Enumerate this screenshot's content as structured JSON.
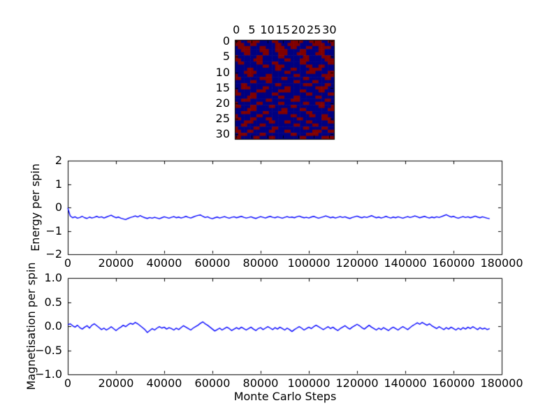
{
  "figure": {
    "background": "#ffffff",
    "frame_color": "#000000",
    "line_color": "#0000ff"
  },
  "chart_data": [
    {
      "id": "spin-lattice",
      "type": "heatmap",
      "grid_size": 32,
      "tick_values": [
        0,
        5,
        10,
        15,
        20,
        25,
        30
      ],
      "xtick_labels": [
        "0",
        "5",
        "10",
        "15",
        "20",
        "25",
        "30"
      ],
      "ytick_labels": [
        "0",
        "5",
        "10",
        "15",
        "20",
        "25",
        "30"
      ],
      "palette": {
        "R": "#800000",
        "B": "#000080"
      },
      "rows": [
        "RRBBRRRRBBBBRRBBBBRRRRBBRRRRBBRR",
        "RRRBBRRBBBBBBRRBBRRRRBBBBRRRRBBR",
        "BRRRRBBBRRBBBRRRBBRRBBBRRBBRRRRB",
        "BBRRRBBBRRRBBRRRRBBBBRRBBBBRRBBB",
        "BBBRRBBBBRRBBBRRRBBBRRRBBBRRRBBB",
        "RBBBBBBRRBBBBBRRBBBBBBRRBBBBRRRB",
        "RRBBBBRRRBBBBBBBRRBBBRRRBBBBBRRR",
        "BRRBBBBRRBBBRRBBBBBBBRRBBBBBBBRR",
        "BBBBBBBBBRRBBRRRBBBBBBBRRBBRRBBB",
        "BBBBRRBBBBBBBRRBBBRRBBBBRRRRBBBB",
        "BBBRRRRBBBBBBBBBRRBBBBBRRRBBBBRR",
        "RBBBRRBBBBRRBBBBBBBRRBBBBBBBRRRR",
        "RRBBBBBBRRRRBBBRRBBBBBRRBBBBBRRB",
        "BBBBBRRBBBRRBBBBBBBRRBBBBRRBBBBB",
        "BBRRBBBBBBBBBRRBBBBBBBRRRBBBBRRB",
        "BBRRRBBBBRRBBBBBRRBBBBBBBBRRRRBB",
        "RBBBBBBRRRBBBBRRRRBBBRRBBBBRRBBB",
        "RRBBBRRBBBBBRRBBBBBBBBBRRBBBBBRR",
        "BBBBRRRBBBBBBBRRBBBRRBBBBBRRBBBB",
        "BBRRRBBBBBRRBBBBBBRRRBBBBBBBBRRB",
        "RBBBBBBRRBBBBBRRBBBBBBRRBBRRRBBB",
        "RRBBBRRBBBBRRBBBBBRRBBBBBBBRRBBR",
        "BBBBRRRBBBBBBBBRRBBBBRRBBBBBBBRR",
        "BBRRRBBBBRRBBBRRRBBBBBBRRBBBBBBB",
        "RBBBBBBRRBBBBBBBBBRRBBBBRRBBRRBB",
        "RRBBBRRBBBRRBBBBBBBBRRBBBBBBRRRB",
        "BBBRRRBBBBBRRBBBRRBBBBBRRBBBBBRR",
        "BBRRBBBBRRBBBBBBBBBRRBBBBRRBBBBB",
        "RBBBBBRRBBBBRRBBBBBBBBRRBBBBRRBB",
        "RRBBRRBBBBBRRBBBRRBBBBBBBRRRBBRR",
        "BRRRBBBBRRBBBBBBBBRRBBBRRRRBBBBB",
        "RRBBBBRRBBBRRBBBBBBBBRRBBBBBRRRR"
      ]
    },
    {
      "id": "energy",
      "type": "line",
      "ylabel": "Energy per spin",
      "ylim": [
        -2,
        2
      ],
      "ytick_values": [
        2,
        1,
        0,
        -1,
        -2
      ],
      "ytick_labels": [
        "2",
        "1",
        "0",
        "−1",
        "−2"
      ],
      "xlim": [
        0,
        180000
      ],
      "xtick_values": [
        0,
        20000,
        40000,
        60000,
        80000,
        100000,
        120000,
        140000,
        160000,
        180000
      ],
      "xtick_labels": [
        "0",
        "20000",
        "40000",
        "60000",
        "80000",
        "100000",
        "120000",
        "140000",
        "160000",
        "180000"
      ],
      "x_start": 0,
      "x_step": 1000,
      "values": [
        -0.02,
        -0.36,
        -0.44,
        -0.4,
        -0.46,
        -0.43,
        -0.38,
        -0.44,
        -0.47,
        -0.41,
        -0.45,
        -0.42,
        -0.38,
        -0.43,
        -0.4,
        -0.45,
        -0.41,
        -0.37,
        -0.33,
        -0.39,
        -0.44,
        -0.41,
        -0.46,
        -0.49,
        -0.52,
        -0.47,
        -0.43,
        -0.4,
        -0.36,
        -0.41,
        -0.35,
        -0.4,
        -0.44,
        -0.47,
        -0.43,
        -0.46,
        -0.42,
        -0.45,
        -0.48,
        -0.44,
        -0.4,
        -0.43,
        -0.46,
        -0.42,
        -0.39,
        -0.44,
        -0.41,
        -0.45,
        -0.42,
        -0.38,
        -0.42,
        -0.45,
        -0.41,
        -0.37,
        -0.34,
        -0.32,
        -0.38,
        -0.43,
        -0.4,
        -0.45,
        -0.48,
        -0.44,
        -0.41,
        -0.45,
        -0.42,
        -0.39,
        -0.43,
        -0.46,
        -0.42,
        -0.4,
        -0.44,
        -0.41,
        -0.38,
        -0.42,
        -0.45,
        -0.43,
        -0.4,
        -0.44,
        -0.47,
        -0.43,
        -0.39,
        -0.42,
        -0.45,
        -0.41,
        -0.38,
        -0.42,
        -0.44,
        -0.4,
        -0.43,
        -0.46,
        -0.42,
        -0.39,
        -0.43,
        -0.41,
        -0.44,
        -0.4,
        -0.37,
        -0.41,
        -0.44,
        -0.42,
        -0.45,
        -0.41,
        -0.38,
        -0.42,
        -0.46,
        -0.43,
        -0.4,
        -0.36,
        -0.4,
        -0.44,
        -0.41,
        -0.45,
        -0.42,
        -0.39,
        -0.43,
        -0.4,
        -0.44,
        -0.47,
        -0.43,
        -0.4,
        -0.37,
        -0.41,
        -0.44,
        -0.4,
        -0.43,
        -0.39,
        -0.35,
        -0.4,
        -0.44,
        -0.41,
        -0.45,
        -0.42,
        -0.38,
        -0.42,
        -0.45,
        -0.41,
        -0.44,
        -0.4,
        -0.43,
        -0.46,
        -0.42,
        -0.39,
        -0.43,
        -0.4,
        -0.36,
        -0.4,
        -0.44,
        -0.41,
        -0.38,
        -0.42,
        -0.45,
        -0.41,
        -0.44,
        -0.4,
        -0.43,
        -0.39,
        -0.35,
        -0.31,
        -0.36,
        -0.41,
        -0.38,
        -0.43,
        -0.46,
        -0.42,
        -0.39,
        -0.43,
        -0.4,
        -0.44,
        -0.41,
        -0.37,
        -0.41,
        -0.44,
        -0.4,
        -0.43,
        -0.46,
        -0.48
      ]
    },
    {
      "id": "magnetisation",
      "type": "line",
      "ylabel": "Magnetisation per spin",
      "xlabel": "Monte Carlo Steps",
      "ylim": [
        -1,
        1
      ],
      "ytick_values": [
        1,
        0.5,
        0,
        -0.5,
        -1
      ],
      "ytick_labels": [
        "1.0",
        "0.5",
        "0.0",
        "−0.5",
        "−1.0"
      ],
      "xlim": [
        0,
        180000
      ],
      "xtick_values": [
        0,
        20000,
        40000,
        60000,
        80000,
        100000,
        120000,
        140000,
        160000,
        180000
      ],
      "xtick_labels": [
        "0",
        "20000",
        "40000",
        "60000",
        "80000",
        "100000",
        "120000",
        "140000",
        "160000",
        "180000"
      ],
      "x_start": 0,
      "x_step": 1000,
      "values": [
        0.03,
        0.05,
        0.01,
        -0.02,
        0.02,
        -0.03,
        -0.06,
        -0.02,
        0.01,
        -0.04,
        0.02,
        0.05,
        0.01,
        -0.03,
        -0.07,
        -0.04,
        -0.08,
        -0.05,
        -0.01,
        -0.05,
        -0.09,
        -0.05,
        -0.02,
        0.02,
        -0.01,
        0.03,
        0.06,
        0.04,
        0.08,
        0.05,
        0.01,
        -0.03,
        -0.07,
        -0.13,
        -0.09,
        -0.05,
        -0.08,
        -0.04,
        -0.01,
        -0.04,
        -0.02,
        -0.06,
        -0.03,
        -0.05,
        -0.08,
        -0.04,
        -0.07,
        -0.03,
        0.01,
        -0.02,
        -0.05,
        -0.08,
        -0.04,
        -0.01,
        0.02,
        0.06,
        0.09,
        0.05,
        0.02,
        -0.02,
        -0.06,
        -0.1,
        -0.07,
        -0.04,
        -0.08,
        -0.05,
        -0.02,
        -0.05,
        -0.09,
        -0.06,
        -0.03,
        -0.06,
        -0.02,
        -0.05,
        -0.08,
        -0.05,
        -0.02,
        -0.06,
        -0.09,
        -0.05,
        -0.03,
        -0.07,
        -0.04,
        -0.01,
        -0.04,
        -0.07,
        -0.03,
        -0.06,
        -0.02,
        -0.05,
        -0.08,
        -0.04,
        -0.07,
        -0.11,
        -0.07,
        -0.04,
        -0.01,
        -0.04,
        -0.08,
        -0.05,
        -0.02,
        -0.05,
        -0.01,
        0.02,
        -0.01,
        -0.04,
        -0.07,
        -0.04,
        -0.01,
        -0.05,
        -0.02,
        -0.06,
        -0.09,
        -0.05,
        -0.02,
        0.01,
        -0.03,
        -0.06,
        -0.02,
        0.01,
        0.04,
        0.01,
        -0.03,
        -0.06,
        -0.02,
        0.02,
        -0.02,
        -0.05,
        -0.08,
        -0.04,
        -0.07,
        -0.03,
        -0.06,
        -0.09,
        -0.05,
        -0.02,
        -0.05,
        -0.08,
        -0.04,
        -0.01,
        -0.04,
        -0.07,
        -0.03,
        0.01,
        0.04,
        0.07,
        0.04,
        0.08,
        0.05,
        0.02,
        0.05,
        0.01,
        -0.02,
        -0.05,
        -0.01,
        -0.04,
        -0.07,
        -0.03,
        -0.06,
        -0.02,
        -0.05,
        -0.08,
        -0.04,
        -0.07,
        -0.03,
        -0.06,
        -0.02,
        -0.05,
        -0.01,
        -0.04,
        -0.07,
        -0.03,
        -0.06,
        -0.04,
        -0.07,
        -0.05
      ]
    }
  ]
}
